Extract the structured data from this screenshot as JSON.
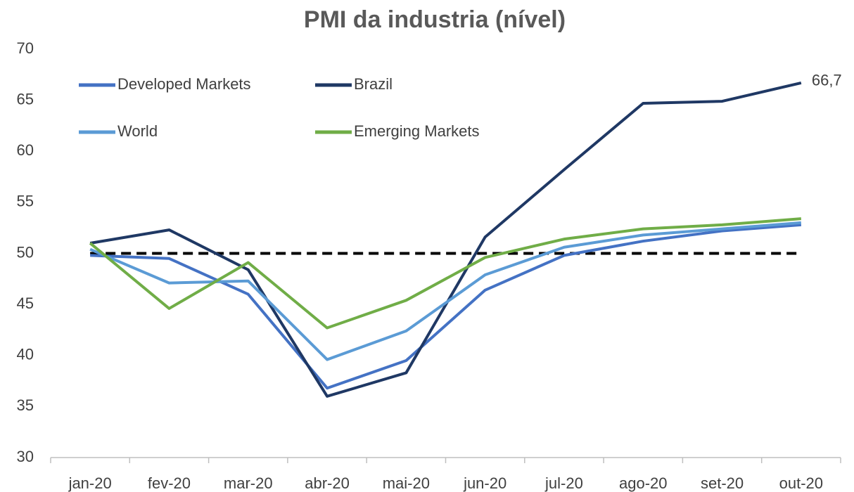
{
  "chart_data": {
    "type": "line",
    "title": "PMI da industria (nível)",
    "categories": [
      "jan-20",
      "fev-20",
      "mar-20",
      "abr-20",
      "mai-20",
      "jun-20",
      "jul-20",
      "ago-20",
      "set-20",
      "out-20"
    ],
    "series": [
      {
        "name": "Developed Markets",
        "color": "#4472c4",
        "values": [
          49.8,
          49.5,
          46.0,
          36.8,
          39.5,
          46.4,
          49.8,
          51.2,
          52.2,
          52.8
        ]
      },
      {
        "name": "Brazil",
        "color": "#1f3864",
        "values": [
          51.0,
          52.3,
          48.4,
          36.0,
          38.3,
          51.6,
          58.2,
          64.7,
          64.9,
          66.7
        ],
        "value_labels": [
          null,
          null,
          null,
          null,
          null,
          null,
          null,
          null,
          null,
          "66,7"
        ]
      },
      {
        "name": "World",
        "color": "#5b9bd5",
        "values": [
          50.4,
          47.1,
          47.3,
          39.6,
          42.4,
          47.9,
          50.6,
          51.8,
          52.4,
          53.0
        ]
      },
      {
        "name": "Emerging Markets",
        "color": "#70ad47",
        "values": [
          51.0,
          44.6,
          49.1,
          42.7,
          45.4,
          49.6,
          51.4,
          52.4,
          52.8,
          53.4
        ]
      }
    ],
    "reference_line": 50,
    "ylim": [
      30,
      70
    ],
    "yticks": [
      30,
      35,
      40,
      45,
      50,
      55,
      60,
      65,
      70
    ],
    "grid": false
  }
}
